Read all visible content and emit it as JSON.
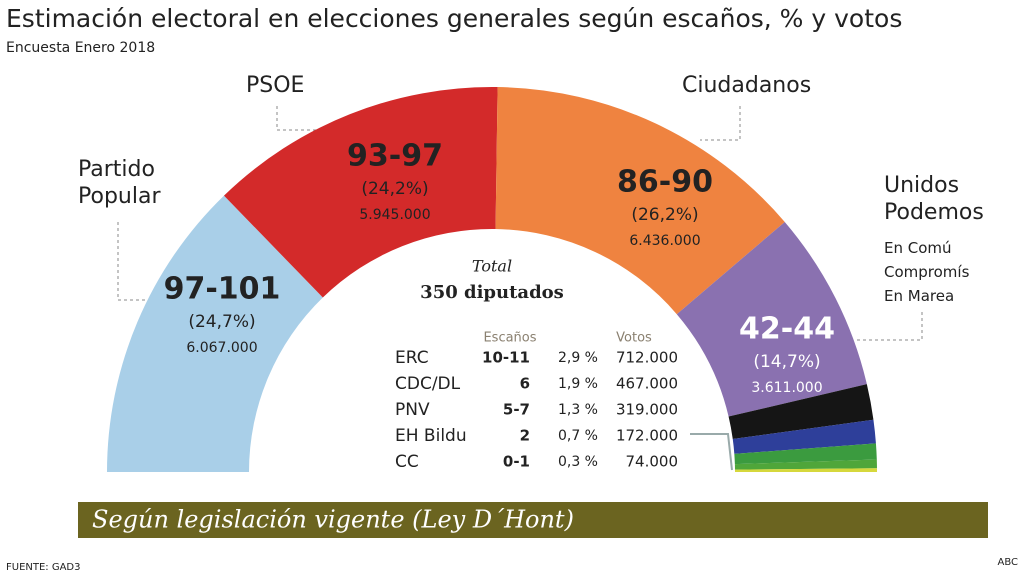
{
  "title": "Estimación electoral en elecciones generales según escaños, % y votos",
  "subtitle": "Encuesta Enero 2018",
  "chart_data": {
    "type": "hemicycle",
    "categories": [
      "Partido Popular",
      "PSOE",
      "Ciudadanos",
      "Unidos Podemos",
      "ERC",
      "CDC/DL",
      "PNV",
      "EH Bildu",
      "CC"
    ],
    "values": [
      24.7,
      24.2,
      26.2,
      14.7,
      2.9,
      1.9,
      1.3,
      0.7,
      0.3
    ],
    "value_labels": [
      "(24,7%)",
      "(24,2%)",
      "(26,2%)",
      "(14,7%)",
      "2,9 %",
      "1,9 %",
      "1,3 %",
      "0,7 %",
      "0,3 %"
    ],
    "seats": [
      "97-101",
      "93-97",
      "86-90",
      "42-44",
      "10-11",
      "6",
      "5-7",
      "2",
      "0-1"
    ],
    "votes": [
      "6.067.000",
      "5.945.000",
      "6.436.000",
      "3.611.000",
      "712.000",
      "467.000",
      "319.000",
      "172.000",
      "74.000"
    ],
    "colors": [
      "#a9cfe8",
      "#d32a2a",
      "#ef8340",
      "#8a71b0",
      "#151515",
      "#2e3f9a",
      "#3b9b3f",
      "#4fa63a",
      "#d6d83c"
    ],
    "annotation_lines": [
      "En Comú",
      "Compromís",
      "En Marea"
    ],
    "total_label": "Total",
    "total_text": "350 diputados",
    "table_headers": [
      "Escaños",
      "Votos"
    ]
  },
  "banner": "Según legislación vigente (Ley D´Hont)",
  "source": "FUENTE: GAD3",
  "brand": "ABC"
}
